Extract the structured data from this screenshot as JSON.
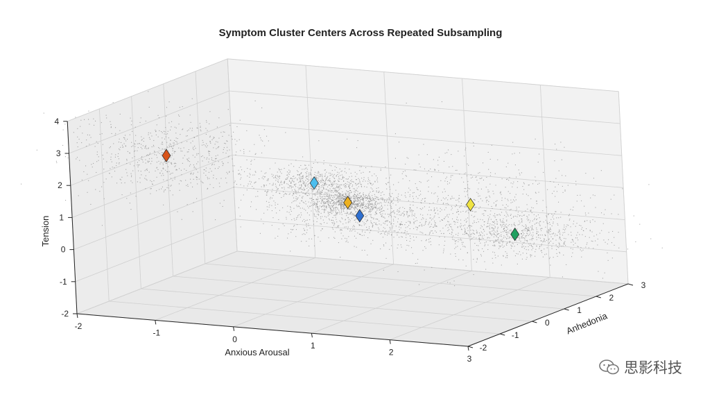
{
  "chart_data": {
    "type": "scatter",
    "title": "Symptom Cluster Centers Across Repeated Subsampling",
    "xlabel": "Anxious Arousal",
    "ylabel": "Anhedonia",
    "zlabel": "Tension",
    "xlim": [
      -2,
      3
    ],
    "ylim": [
      -2,
      3
    ],
    "zlim": [
      -2,
      4
    ],
    "xticks": [
      "-2",
      "-1",
      "0",
      "1",
      "2",
      "3"
    ],
    "yticks": [
      "-2",
      "-1",
      "0",
      "1",
      "2",
      "3"
    ],
    "zticks": [
      "-2",
      "-1",
      "0",
      "1",
      "2",
      "3",
      "4"
    ],
    "grid": true,
    "projection": "3d",
    "point_color": "#8c8c8c",
    "clusters": [
      {
        "x": -1.8,
        "y": 0.5,
        "z": 2.0,
        "color": "#d95319"
      },
      {
        "x": 0.5,
        "y": -0.5,
        "z": 2.0,
        "color": "#4dbeee"
      },
      {
        "x": 0.5,
        "y": 0.5,
        "z": 1.0,
        "color": "#edb120"
      },
      {
        "x": 0.1,
        "y": 1.8,
        "z": 0.0,
        "color": "#2e6fd0"
      },
      {
        "x": 2.2,
        "y": 0.2,
        "z": 1.4,
        "color": "#f0e442"
      },
      {
        "x": 2.5,
        "y": 0.8,
        "z": 0.3,
        "color": "#20a060"
      }
    ]
  },
  "watermark": {
    "text": "思影科技"
  }
}
